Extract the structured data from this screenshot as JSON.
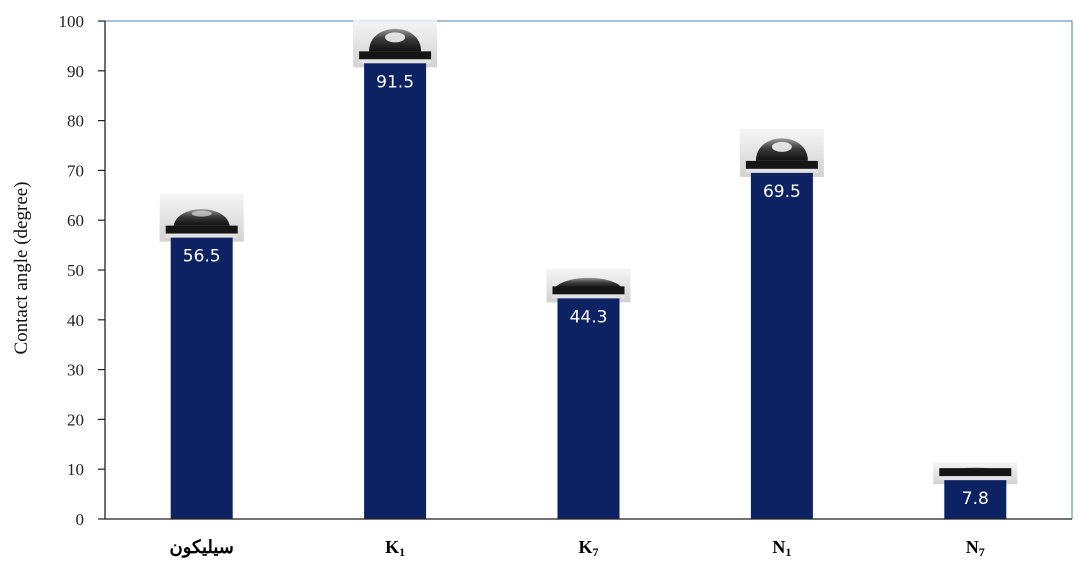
{
  "chart_data": {
    "type": "bar",
    "ylabel": "Contact angle (degree)",
    "xlabel": "",
    "ylim": [
      0,
      100
    ],
    "yticks": [
      0,
      10,
      20,
      30,
      40,
      50,
      60,
      70,
      80,
      90,
      100
    ],
    "categories": [
      {
        "label": "سيليكون",
        "sub": ""
      },
      {
        "label": "K",
        "sub": "1"
      },
      {
        "label": "K",
        "sub": "7"
      },
      {
        "label": "N",
        "sub": "1"
      },
      {
        "label": "N",
        "sub": "7"
      }
    ],
    "values": [
      56.5,
      91.5,
      44.3,
      69.5,
      7.8
    ],
    "data_labels": [
      "56.5",
      "91.5",
      "44.3",
      "69.5",
      "7.8"
    ],
    "bar_color": "#0d2262",
    "axis_color": "#222222",
    "frame_color": "#4a7fb0",
    "droplet_images": [
      {
        "shape": "cap"
      },
      {
        "shape": "sphere"
      },
      {
        "shape": "flat"
      },
      {
        "shape": "sphere"
      },
      {
        "shape": "film"
      }
    ]
  }
}
